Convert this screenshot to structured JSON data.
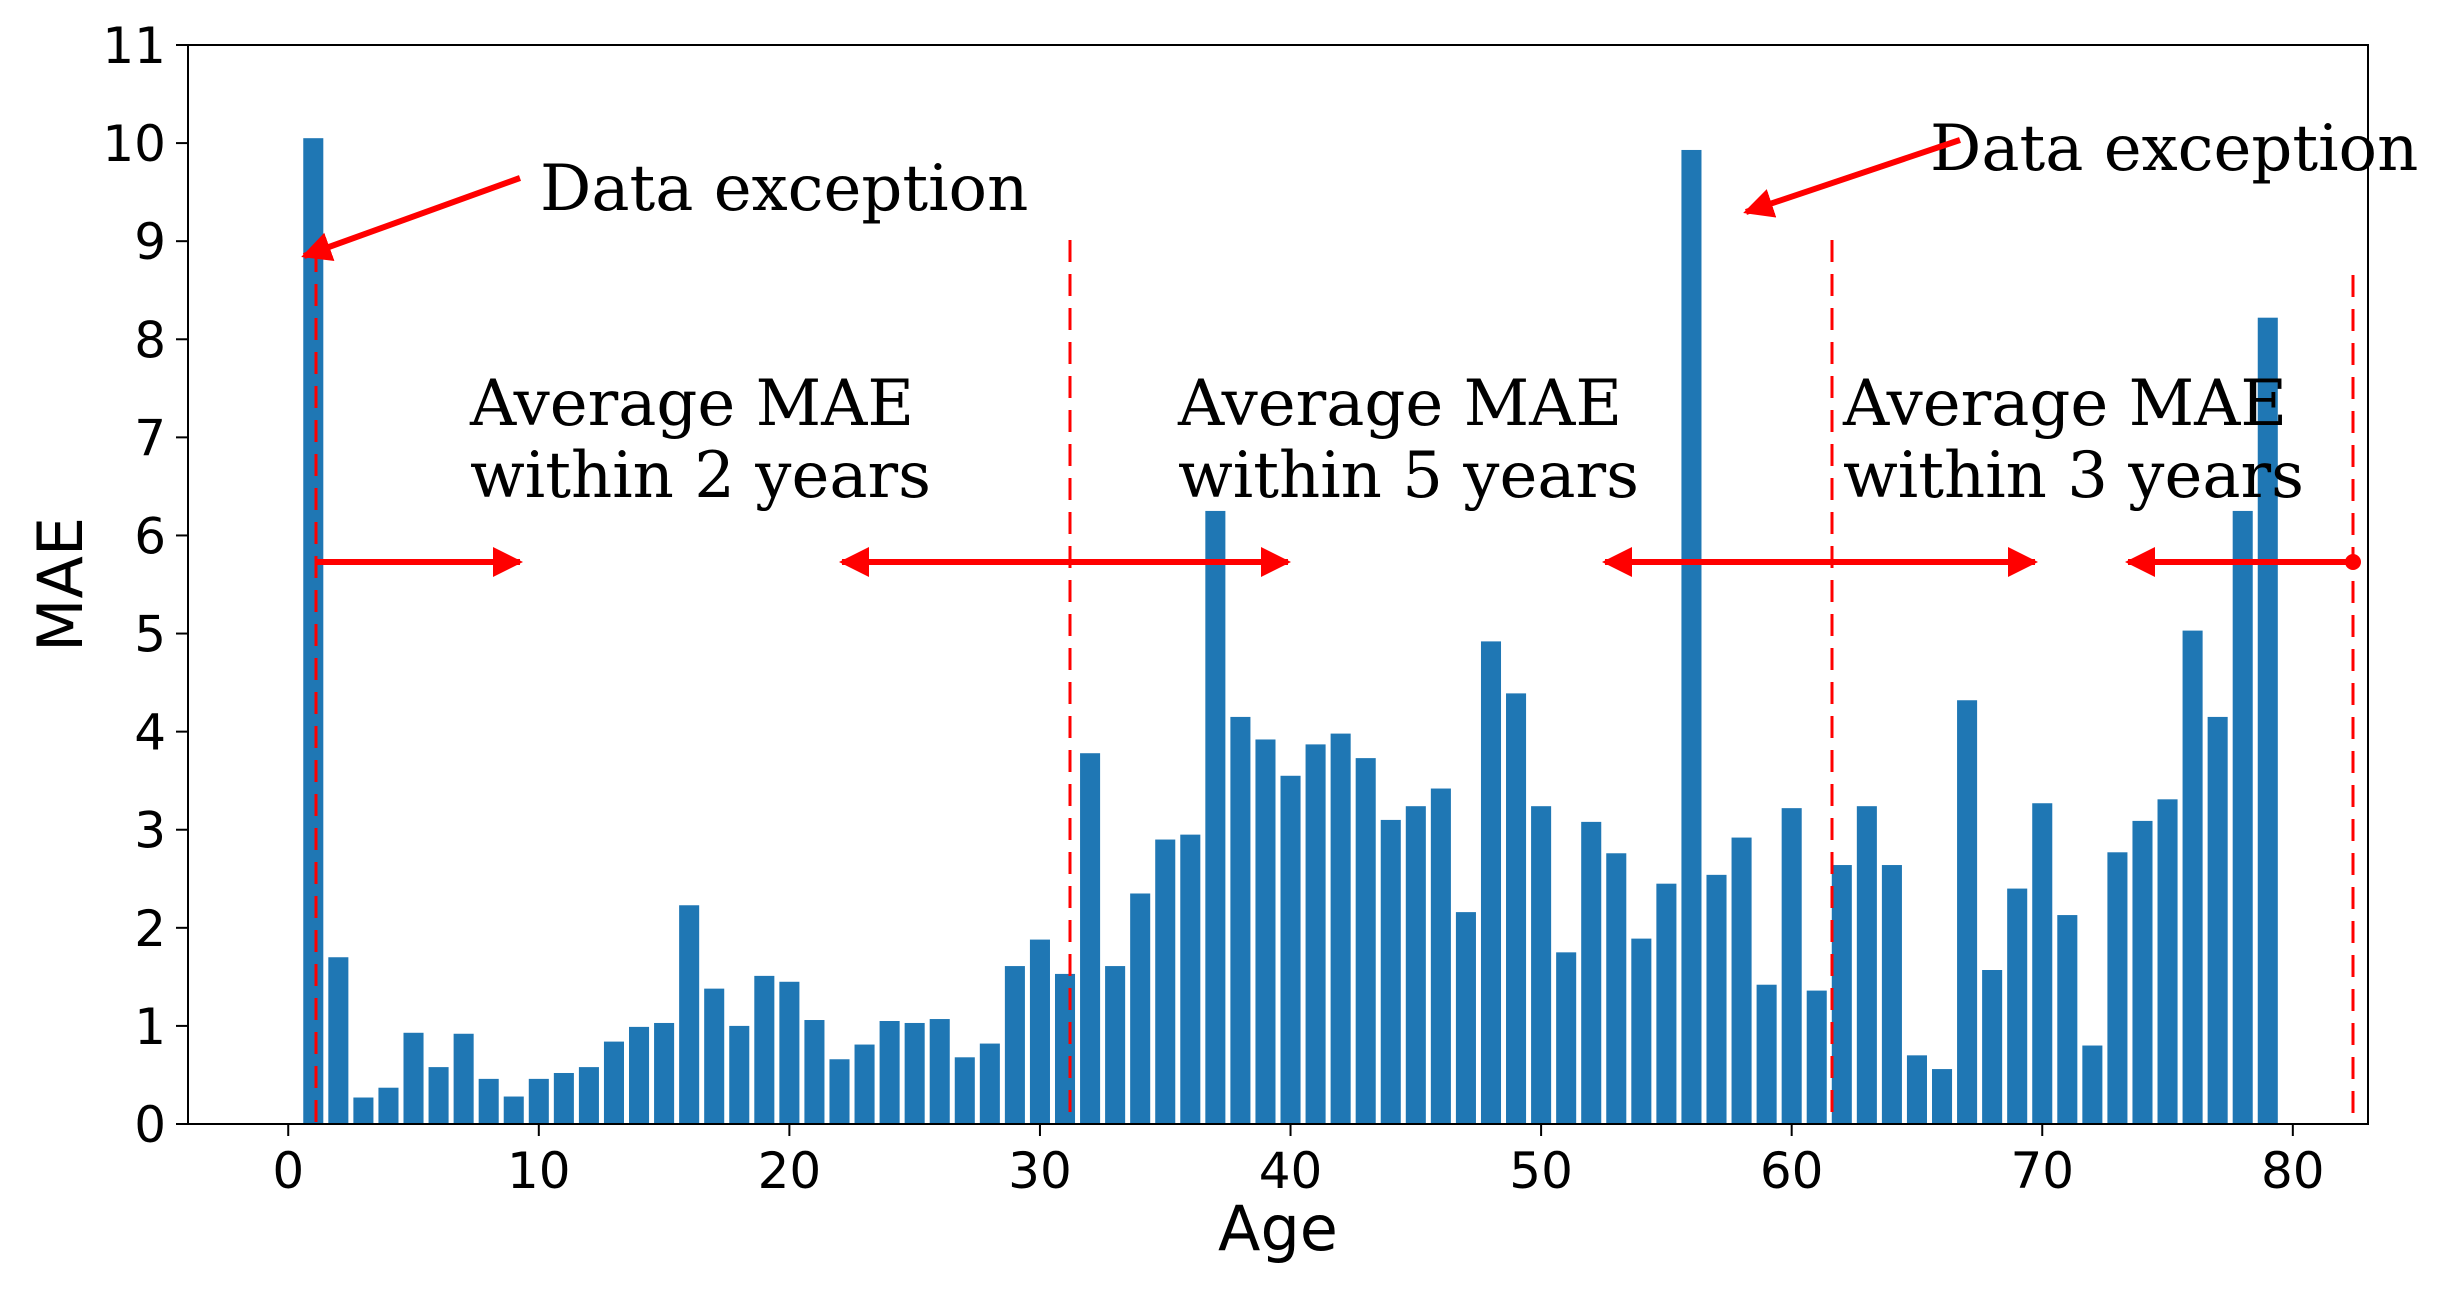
{
  "chart_data": {
    "type": "bar",
    "xlabel": "Age",
    "ylabel": "MAE",
    "xlim": [
      -4,
      83
    ],
    "ylim": [
      0,
      11
    ],
    "x_ticks": [
      "0",
      "10",
      "20",
      "30",
      "40",
      "50",
      "60",
      "70",
      "80"
    ],
    "y_ticks": [
      "0",
      "1",
      "2",
      "3",
      "4",
      "5",
      "6",
      "7",
      "8",
      "9",
      "10",
      "11"
    ],
    "bar_color": "#1f77b4",
    "annotation_color": "#ff0000",
    "grid": false,
    "x": [
      1,
      2,
      3,
      4,
      5,
      6,
      7,
      8,
      9,
      10,
      11,
      12,
      13,
      14,
      15,
      16,
      17,
      18,
      19,
      20,
      21,
      22,
      23,
      24,
      25,
      26,
      27,
      28,
      29,
      30,
      31,
      32,
      33,
      34,
      35,
      36,
      37,
      38,
      39,
      40,
      41,
      42,
      43,
      44,
      45,
      46,
      47,
      48,
      49,
      50,
      51,
      52,
      53,
      54,
      55,
      56,
      57,
      58,
      59,
      60,
      61,
      62,
      63,
      64,
      65,
      66,
      67,
      68,
      69,
      70,
      71,
      72,
      73,
      74,
      75,
      76,
      77,
      78,
      79
    ],
    "values": [
      10.05,
      1.7,
      0.27,
      0.37,
      0.93,
      0.58,
      0.92,
      0.46,
      0.28,
      0.46,
      0.52,
      0.58,
      0.84,
      0.99,
      1.03,
      2.23,
      1.38,
      1.0,
      1.51,
      1.45,
      1.06,
      0.66,
      0.81,
      1.05,
      1.03,
      1.07,
      0.68,
      0.82,
      1.61,
      1.88,
      1.53,
      3.78,
      1.61,
      2.35,
      2.9,
      2.95,
      6.25,
      4.15,
      3.92,
      3.55,
      3.87,
      3.98,
      3.73,
      3.1,
      3.24,
      3.42,
      2.16,
      4.92,
      4.39,
      3.24,
      1.75,
      3.08,
      2.76,
      1.89,
      2.45,
      9.93,
      2.54,
      2.92,
      1.42,
      3.22,
      1.36,
      2.64,
      3.24,
      2.64,
      0.7,
      0.56,
      4.32,
      1.57,
      2.4,
      3.27,
      2.13,
      0.8,
      2.77,
      3.09,
      3.31,
      5.03,
      4.15,
      6.25,
      8.22
    ],
    "annotations": {
      "exception_1": "Data exception",
      "exception_2": "Data exception",
      "range_1_line1": "Average MAE",
      "range_1_line2": "within 2 years",
      "range_2_line1": "Average MAE",
      "range_2_line2": "within 5 years",
      "range_3_line1": "Average MAE",
      "range_3_line2": "within 3 years"
    }
  }
}
